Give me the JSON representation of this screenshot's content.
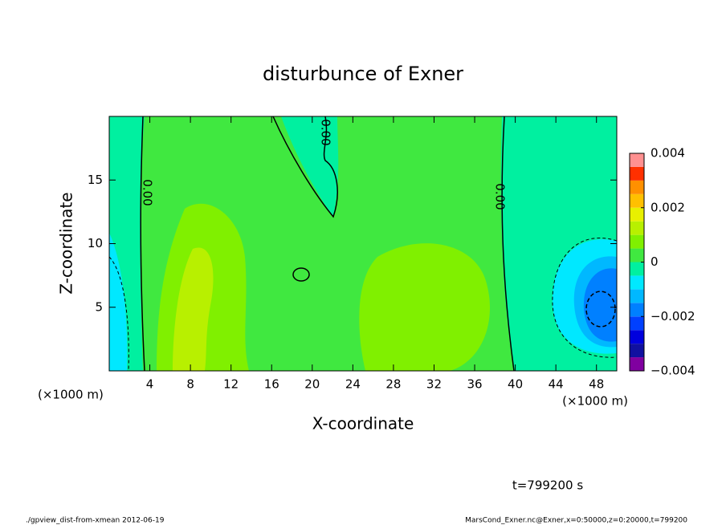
{
  "chart_data": {
    "type": "contour",
    "title": "disturbunce of Exner",
    "x_label": "X-coordinate",
    "y_label": "Z-coordinate",
    "x_units": [
      "(×1000 m)",
      "(×1000 m)"
    ],
    "xlim": [
      0,
      50
    ],
    "xticks": [
      4,
      8,
      12,
      16,
      20,
      24,
      28,
      32,
      36,
      40,
      44,
      48
    ],
    "ylim": [
      0,
      20
    ],
    "yticks": [
      5,
      10,
      15
    ],
    "contour_labels": [
      "0.00",
      "0.00",
      "0.00"
    ],
    "colorbar": {
      "levels": [
        -0.004,
        -0.0035,
        -0.003,
        -0.0025,
        -0.002,
        -0.0015,
        -0.001,
        -0.0005,
        0,
        0.0005,
        0.001,
        0.0015,
        0.002,
        0.0025,
        0.003,
        0.0035,
        0.004
      ],
      "colors": [
        "#8000a0",
        "#1010a0",
        "#0000dd",
        "#0040ff",
        "#0080ff",
        "#00b8ff",
        "#00e8ff",
        "#00f0a0",
        "#40e840",
        "#80f000",
        "#b8f000",
        "#e8f000",
        "#ffc000",
        "#ff9000",
        "#ff3000",
        "#ff9090"
      ],
      "lim": [
        -0.004,
        0.004
      ],
      "ticks": [
        {
          "value": -0.004,
          "label": "−0.004"
        },
        {
          "value": -0.002,
          "label": "−0.002"
        },
        0,
        0.002,
        0.004
      ]
    },
    "time_label": "t=799200 s",
    "footer_left": "./gpview_dist-from-xmean  2012-06-19",
    "footer_right": "MarsCond_Exner.nc@Exner,x=0:50000,z=0:20000,t=799200"
  }
}
